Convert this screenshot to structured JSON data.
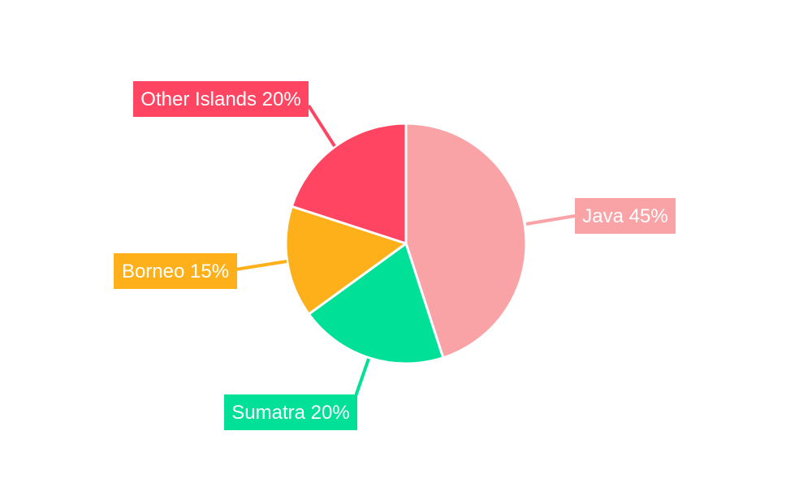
{
  "chart_data": {
    "type": "pie",
    "title": "",
    "slices": [
      {
        "label": "Java",
        "value": 45,
        "display": "Java 45%",
        "color": "#F9A3A6"
      },
      {
        "label": "Sumatra",
        "value": 20,
        "display": "Sumatra 20%",
        "color": "#00E096"
      },
      {
        "label": "Borneo",
        "value": 15,
        "display": "Borneo 15%",
        "color": "#FDB019"
      },
      {
        "label": "Other Islands",
        "value": 20,
        "display": "Other Islands 20%",
        "color": "#FF4561"
      }
    ],
    "start_angle_deg": 0,
    "direction": "clockwise",
    "legend": "none",
    "labels": "outside-callouts"
  }
}
